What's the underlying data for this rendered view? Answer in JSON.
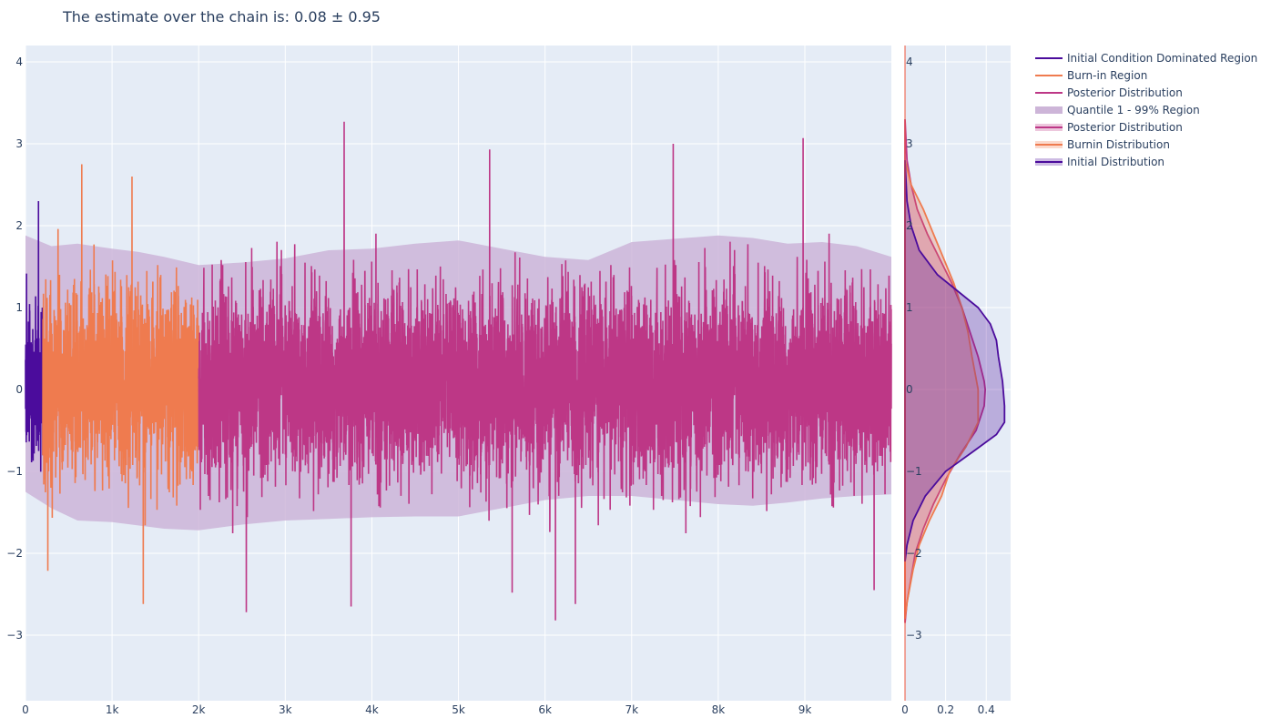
{
  "title": "The estimate over the chain is: 0.08 ± 0.95",
  "colors": {
    "initial": "#4b0c9c",
    "burnin": "#ef7b4f",
    "posterior": "#bd3786",
    "band": "#cdb5d8",
    "plot_bg": "#e5ecf6",
    "grid": "#ffffff",
    "vline": "#ef553b"
  },
  "chart_data": [
    {
      "type": "line",
      "name": "trace",
      "x_range": [
        0,
        9999
      ],
      "y_range": [
        -3.8,
        4.2
      ],
      "x_ticks": [
        {
          "value": 0,
          "label": "0"
        },
        {
          "value": 1000,
          "label": "1k"
        },
        {
          "value": 2000,
          "label": "2k"
        },
        {
          "value": 3000,
          "label": "3k"
        },
        {
          "value": 4000,
          "label": "4k"
        },
        {
          "value": 5000,
          "label": "5k"
        },
        {
          "value": 6000,
          "label": "6k"
        },
        {
          "value": 7000,
          "label": "7k"
        },
        {
          "value": 8000,
          "label": "8k"
        },
        {
          "value": 9000,
          "label": "9k"
        }
      ],
      "y_ticks": [
        {
          "value": -3,
          "label": "−3"
        },
        {
          "value": -2,
          "label": "−2"
        },
        {
          "value": -1,
          "label": "−1"
        },
        {
          "value": 0,
          "label": "0"
        },
        {
          "value": 1,
          "label": "1"
        },
        {
          "value": 2,
          "label": "2"
        },
        {
          "value": 3,
          "label": "3"
        },
        {
          "value": 4,
          "label": "4"
        }
      ],
      "regions": {
        "initial": [
          0,
          200
        ],
        "burnin": [
          200,
          2000
        ],
        "posterior": [
          2000,
          9999
        ]
      },
      "n_points": 10000,
      "trace_seed": 7,
      "band_upper": [
        [
          0,
          1.88
        ],
        [
          300,
          1.75
        ],
        [
          600,
          1.78
        ],
        [
          1000,
          1.72
        ],
        [
          1300,
          1.68
        ],
        [
          1600,
          1.62
        ],
        [
          2000,
          1.52
        ],
        [
          2500,
          1.55
        ],
        [
          3000,
          1.6
        ],
        [
          3500,
          1.7
        ],
        [
          4000,
          1.72
        ],
        [
          4500,
          1.78
        ],
        [
          5000,
          1.82
        ],
        [
          5500,
          1.72
        ],
        [
          6000,
          1.62
        ],
        [
          6500,
          1.58
        ],
        [
          7000,
          1.8
        ],
        [
          7500,
          1.84
        ],
        [
          8000,
          1.88
        ],
        [
          8400,
          1.85
        ],
        [
          8800,
          1.78
        ],
        [
          9200,
          1.8
        ],
        [
          9600,
          1.75
        ],
        [
          9999,
          1.62
        ]
      ],
      "band_lower": [
        [
          0,
          -1.25
        ],
        [
          300,
          -1.45
        ],
        [
          600,
          -1.6
        ],
        [
          1000,
          -1.62
        ],
        [
          1300,
          -1.66
        ],
        [
          1600,
          -1.7
        ],
        [
          2000,
          -1.72
        ],
        [
          2500,
          -1.65
        ],
        [
          3000,
          -1.6
        ],
        [
          3500,
          -1.58
        ],
        [
          4000,
          -1.56
        ],
        [
          4500,
          -1.55
        ],
        [
          5000,
          -1.55
        ],
        [
          5500,
          -1.45
        ],
        [
          6000,
          -1.35
        ],
        [
          6500,
          -1.3
        ],
        [
          7000,
          -1.3
        ],
        [
          7500,
          -1.35
        ],
        [
          8000,
          -1.4
        ],
        [
          8400,
          -1.42
        ],
        [
          8800,
          -1.38
        ],
        [
          9200,
          -1.33
        ],
        [
          9600,
          -1.3
        ],
        [
          9999,
          -1.28
        ]
      ],
      "extreme_spikes": [
        {
          "x": 150,
          "y": 2.3
        },
        {
          "x": 650,
          "y": 2.75
        },
        {
          "x": 1230,
          "y": 2.6
        },
        {
          "x": 1360,
          "y": -2.62
        },
        {
          "x": 2550,
          "y": -2.72
        },
        {
          "x": 3680,
          "y": 3.27
        },
        {
          "x": 3760,
          "y": -2.65
        },
        {
          "x": 5360,
          "y": 2.93
        },
        {
          "x": 5620,
          "y": -2.48
        },
        {
          "x": 6120,
          "y": -2.82
        },
        {
          "x": 6350,
          "y": -2.62
        },
        {
          "x": 7480,
          "y": 3.0
        },
        {
          "x": 8980,
          "y": 3.07
        },
        {
          "x": 9800,
          "y": -2.45
        }
      ]
    },
    {
      "type": "area",
      "name": "density",
      "x_range": [
        0,
        0.52
      ],
      "x_ticks": [
        {
          "value": 0,
          "label": "0"
        },
        {
          "value": 0.2,
          "label": "0.2"
        },
        {
          "value": 0.4,
          "label": "0.4"
        }
      ],
      "vline": 0,
      "posterior": [
        [
          3.3,
          0
        ],
        [
          2.8,
          0.01
        ],
        [
          2.5,
          0.03
        ],
        [
          2.2,
          0.06
        ],
        [
          1.9,
          0.11
        ],
        [
          1.6,
          0.17
        ],
        [
          1.3,
          0.23
        ],
        [
          1.0,
          0.28
        ],
        [
          0.7,
          0.32
        ],
        [
          0.4,
          0.36
        ],
        [
          0.1,
          0.39
        ],
        [
          0.0,
          0.395
        ],
        [
          -0.2,
          0.39
        ],
        [
          -0.5,
          0.35
        ],
        [
          -0.8,
          0.27
        ],
        [
          -1.1,
          0.2
        ],
        [
          -1.4,
          0.14
        ],
        [
          -1.7,
          0.09
        ],
        [
          -2.0,
          0.05
        ],
        [
          -2.3,
          0.03
        ],
        [
          -2.6,
          0.01
        ],
        [
          -2.85,
          0
        ]
      ],
      "burnin": [
        [
          2.8,
          0
        ],
        [
          2.5,
          0.03
        ],
        [
          2.2,
          0.09
        ],
        [
          1.9,
          0.14
        ],
        [
          1.6,
          0.19
        ],
        [
          1.3,
          0.24
        ],
        [
          1.0,
          0.28
        ],
        [
          0.7,
          0.31
        ],
        [
          0.4,
          0.33
        ],
        [
          0.0,
          0.36
        ],
        [
          -0.4,
          0.36
        ],
        [
          -0.7,
          0.3
        ],
        [
          -1.0,
          0.22
        ],
        [
          -1.3,
          0.18
        ],
        [
          -1.6,
          0.12
        ],
        [
          -1.9,
          0.07
        ],
        [
          -2.2,
          0.04
        ],
        [
          -2.6,
          0.01
        ],
        [
          -2.8,
          0
        ]
      ],
      "initial": [
        [
          2.8,
          0
        ],
        [
          2.3,
          0.01
        ],
        [
          2.0,
          0.03
        ],
        [
          1.7,
          0.07
        ],
        [
          1.4,
          0.16
        ],
        [
          1.2,
          0.26
        ],
        [
          1.0,
          0.36
        ],
        [
          0.8,
          0.42
        ],
        [
          0.6,
          0.45
        ],
        [
          0.4,
          0.46
        ],
        [
          0.1,
          0.48
        ],
        [
          -0.2,
          0.49
        ],
        [
          -0.4,
          0.49
        ],
        [
          -0.55,
          0.45
        ],
        [
          -0.75,
          0.34
        ],
        [
          -1.0,
          0.2
        ],
        [
          -1.3,
          0.1
        ],
        [
          -1.6,
          0.04
        ],
        [
          -1.9,
          0.01
        ],
        [
          -2.1,
          0
        ]
      ]
    }
  ],
  "legend": [
    {
      "label": "Initial Condition Dominated Region",
      "series": "initial",
      "kind": "line"
    },
    {
      "label": "Burn-in Region",
      "series": "burnin",
      "kind": "line"
    },
    {
      "label": "Posterior Distribution",
      "series": "posterior",
      "kind": "line"
    },
    {
      "label": "Quantile 1 - 99% Region",
      "series": "band",
      "kind": "band"
    },
    {
      "label": "Posterior Distribution",
      "series": "posterior",
      "kind": "fill"
    },
    {
      "label": "Burnin Distribution",
      "series": "burnin",
      "kind": "fill"
    },
    {
      "label": "Initial Distribution",
      "series": "initial",
      "kind": "fill"
    }
  ]
}
